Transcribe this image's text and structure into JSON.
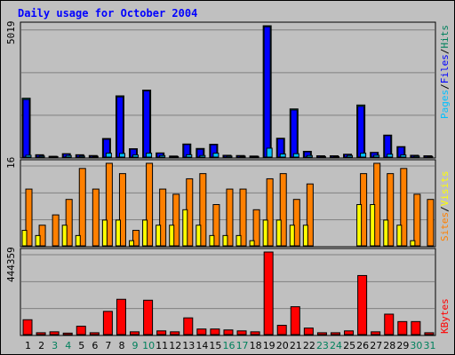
{
  "title": "Daily usage for October 2004",
  "colors": {
    "title": "#0000ff",
    "hits": "#00805c",
    "files": "#0000ff",
    "pages": "#00c0ff",
    "visits": "#ffff00",
    "sites": "#ff8000",
    "kbytes": "#ff0000",
    "weekday": "#000000",
    "weekend": "#00805c"
  },
  "chart_data": [
    {
      "type": "bar",
      "name": "hits-files-pages",
      "ylabel_top": "5019",
      "legend": [
        "Pages",
        "Files",
        "Hits"
      ],
      "ylim": [
        0,
        5019
      ],
      "categories": [
        "1",
        "2",
        "3",
        "4",
        "5",
        "6",
        "7",
        "8",
        "9",
        "10",
        "11",
        "12",
        "13",
        "14",
        "15",
        "16",
        "17",
        "18",
        "19",
        "20",
        "21",
        "22",
        "23",
        "24",
        "25",
        "26",
        "27",
        "28",
        "29",
        "30",
        "31"
      ],
      "series": [
        {
          "name": "Hits",
          "values": [
            2250,
            90,
            30,
            130,
            90,
            60,
            710,
            2340,
            320,
            2560,
            160,
            40,
            500,
            330,
            490,
            70,
            60,
            40,
            5019,
            720,
            1840,
            220,
            50,
            50,
            110,
            1990,
            180,
            840,
            400,
            70,
            50
          ]
        },
        {
          "name": "Files",
          "values": [
            2200,
            80,
            25,
            120,
            80,
            50,
            680,
            2300,
            300,
            2530,
            150,
            35,
            480,
            300,
            470,
            60,
            50,
            35,
            4980,
            700,
            1800,
            200,
            45,
            45,
            100,
            1940,
            170,
            820,
            380,
            60,
            45
          ]
        },
        {
          "name": "Pages",
          "values": [
            70,
            40,
            20,
            60,
            40,
            30,
            150,
            140,
            80,
            150,
            60,
            20,
            90,
            60,
            150,
            40,
            35,
            25,
            340,
            120,
            130,
            60,
            20,
            20,
            60,
            150,
            70,
            110,
            80,
            40,
            20
          ]
        }
      ],
      "xlabel_colors": [
        "#000000",
        "#000000",
        "#00805c",
        "#00805c",
        "#000000",
        "#000000",
        "#000000",
        "#000000",
        "#00805c",
        "#00805c",
        "#000000",
        "#000000",
        "#000000",
        "#000000",
        "#000000",
        "#00805c",
        "#00805c",
        "#000000",
        "#000000",
        "#000000",
        "#000000",
        "#000000",
        "#00805c",
        "#00805c",
        "#000000",
        "#000000",
        "#000000",
        "#000000",
        "#000000",
        "#00805c",
        "#00805c"
      ]
    },
    {
      "type": "bar",
      "name": "visits-sites",
      "ylabel_top": "16",
      "legend": [
        "Sites",
        "Visits"
      ],
      "ylim": [
        0,
        16
      ],
      "series": [
        {
          "name": "Visits",
          "values": [
            3,
            2,
            0,
            4,
            2,
            0,
            5,
            5,
            1,
            5,
            4,
            4,
            7,
            4,
            2,
            2,
            2,
            1,
            5,
            5,
            4,
            4,
            0,
            0,
            0,
            8,
            8,
            5,
            4,
            1,
            0
          ]
        },
        {
          "name": "Sites",
          "values": [
            11,
            4,
            6,
            9,
            15,
            11,
            16,
            14,
            3,
            16,
            11,
            10,
            13,
            14,
            8,
            11,
            11,
            7,
            13,
            14,
            9,
            12,
            0,
            0,
            0,
            14,
            16,
            14,
            15,
            10,
            9
          ]
        }
      ]
    },
    {
      "type": "bar",
      "name": "kbytes",
      "ylabel_top": "444359",
      "legend": [
        "KBytes"
      ],
      "ylim": [
        0,
        444359
      ],
      "series": [
        {
          "name": "KBytes",
          "values": [
            80000,
            10000,
            15000,
            8000,
            45000,
            10000,
            125000,
            190000,
            15000,
            185000,
            20000,
            15000,
            90000,
            30000,
            30000,
            25000,
            20000,
            15000,
            444359,
            50000,
            150000,
            35000,
            10000,
            10000,
            20000,
            318000,
            15000,
            110000,
            70000,
            70000,
            10000
          ]
        }
      ]
    }
  ]
}
